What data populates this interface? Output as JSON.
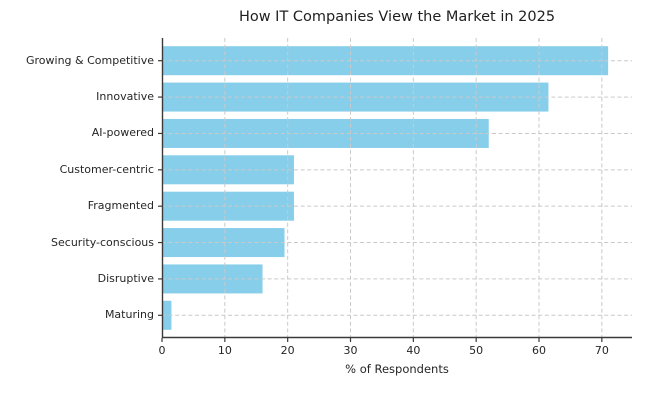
{
  "chart_data": {
    "type": "bar",
    "orientation": "horizontal",
    "title": "How IT Companies View the Market in 2025",
    "categories": [
      "Growing & Competitive",
      "Innovative",
      "AI-powered",
      "Customer-centric",
      "Fragmented",
      "Security-conscious",
      "Disruptive",
      "Maturing"
    ],
    "values": [
      71,
      61.5,
      52,
      21,
      21,
      19.5,
      16,
      1.5
    ],
    "xlabel": "% of Respondents",
    "xticks": [
      0,
      10,
      20,
      30,
      40,
      50,
      60,
      70
    ],
    "xlim": [
      0,
      74.8
    ],
    "grid": true,
    "grid_style": "dashed",
    "legend_position": "none",
    "bar_color": "#87CEEB",
    "grid_color": "#c9c9c9",
    "axis_color": "#3a3a3a",
    "text_color": "#262626"
  }
}
